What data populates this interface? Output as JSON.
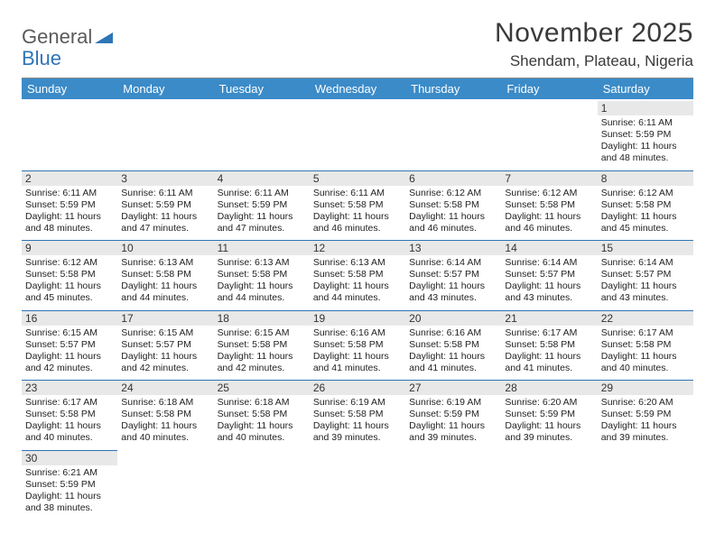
{
  "brand": {
    "general": "General",
    "blue": "Blue",
    "triangle_color": "#2f74b5"
  },
  "title": "November 2025",
  "location": "Shendam, Plateau, Nigeria",
  "colors": {
    "header_bg": "#3b8bc8",
    "header_fg": "#ffffff",
    "daynum_bg": "#e8e8e8",
    "row_divider": "#2f74b5",
    "text": "#222222"
  },
  "weekdays": [
    "Sunday",
    "Monday",
    "Tuesday",
    "Wednesday",
    "Thursday",
    "Friday",
    "Saturday"
  ],
  "weeks": [
    [
      {
        "n": "",
        "sr": "",
        "ss": "",
        "dl": ""
      },
      {
        "n": "",
        "sr": "",
        "ss": "",
        "dl": ""
      },
      {
        "n": "",
        "sr": "",
        "ss": "",
        "dl": ""
      },
      {
        "n": "",
        "sr": "",
        "ss": "",
        "dl": ""
      },
      {
        "n": "",
        "sr": "",
        "ss": "",
        "dl": ""
      },
      {
        "n": "",
        "sr": "",
        "ss": "",
        "dl": ""
      },
      {
        "n": "1",
        "sr": "Sunrise: 6:11 AM",
        "ss": "Sunset: 5:59 PM",
        "dl": "Daylight: 11 hours and 48 minutes."
      }
    ],
    [
      {
        "n": "2",
        "sr": "Sunrise: 6:11 AM",
        "ss": "Sunset: 5:59 PM",
        "dl": "Daylight: 11 hours and 48 minutes."
      },
      {
        "n": "3",
        "sr": "Sunrise: 6:11 AM",
        "ss": "Sunset: 5:59 PM",
        "dl": "Daylight: 11 hours and 47 minutes."
      },
      {
        "n": "4",
        "sr": "Sunrise: 6:11 AM",
        "ss": "Sunset: 5:59 PM",
        "dl": "Daylight: 11 hours and 47 minutes."
      },
      {
        "n": "5",
        "sr": "Sunrise: 6:11 AM",
        "ss": "Sunset: 5:58 PM",
        "dl": "Daylight: 11 hours and 46 minutes."
      },
      {
        "n": "6",
        "sr": "Sunrise: 6:12 AM",
        "ss": "Sunset: 5:58 PM",
        "dl": "Daylight: 11 hours and 46 minutes."
      },
      {
        "n": "7",
        "sr": "Sunrise: 6:12 AM",
        "ss": "Sunset: 5:58 PM",
        "dl": "Daylight: 11 hours and 46 minutes."
      },
      {
        "n": "8",
        "sr": "Sunrise: 6:12 AM",
        "ss": "Sunset: 5:58 PM",
        "dl": "Daylight: 11 hours and 45 minutes."
      }
    ],
    [
      {
        "n": "9",
        "sr": "Sunrise: 6:12 AM",
        "ss": "Sunset: 5:58 PM",
        "dl": "Daylight: 11 hours and 45 minutes."
      },
      {
        "n": "10",
        "sr": "Sunrise: 6:13 AM",
        "ss": "Sunset: 5:58 PM",
        "dl": "Daylight: 11 hours and 44 minutes."
      },
      {
        "n": "11",
        "sr": "Sunrise: 6:13 AM",
        "ss": "Sunset: 5:58 PM",
        "dl": "Daylight: 11 hours and 44 minutes."
      },
      {
        "n": "12",
        "sr": "Sunrise: 6:13 AM",
        "ss": "Sunset: 5:58 PM",
        "dl": "Daylight: 11 hours and 44 minutes."
      },
      {
        "n": "13",
        "sr": "Sunrise: 6:14 AM",
        "ss": "Sunset: 5:57 PM",
        "dl": "Daylight: 11 hours and 43 minutes."
      },
      {
        "n": "14",
        "sr": "Sunrise: 6:14 AM",
        "ss": "Sunset: 5:57 PM",
        "dl": "Daylight: 11 hours and 43 minutes."
      },
      {
        "n": "15",
        "sr": "Sunrise: 6:14 AM",
        "ss": "Sunset: 5:57 PM",
        "dl": "Daylight: 11 hours and 43 minutes."
      }
    ],
    [
      {
        "n": "16",
        "sr": "Sunrise: 6:15 AM",
        "ss": "Sunset: 5:57 PM",
        "dl": "Daylight: 11 hours and 42 minutes."
      },
      {
        "n": "17",
        "sr": "Sunrise: 6:15 AM",
        "ss": "Sunset: 5:57 PM",
        "dl": "Daylight: 11 hours and 42 minutes."
      },
      {
        "n": "18",
        "sr": "Sunrise: 6:15 AM",
        "ss": "Sunset: 5:58 PM",
        "dl": "Daylight: 11 hours and 42 minutes."
      },
      {
        "n": "19",
        "sr": "Sunrise: 6:16 AM",
        "ss": "Sunset: 5:58 PM",
        "dl": "Daylight: 11 hours and 41 minutes."
      },
      {
        "n": "20",
        "sr": "Sunrise: 6:16 AM",
        "ss": "Sunset: 5:58 PM",
        "dl": "Daylight: 11 hours and 41 minutes."
      },
      {
        "n": "21",
        "sr": "Sunrise: 6:17 AM",
        "ss": "Sunset: 5:58 PM",
        "dl": "Daylight: 11 hours and 41 minutes."
      },
      {
        "n": "22",
        "sr": "Sunrise: 6:17 AM",
        "ss": "Sunset: 5:58 PM",
        "dl": "Daylight: 11 hours and 40 minutes."
      }
    ],
    [
      {
        "n": "23",
        "sr": "Sunrise: 6:17 AM",
        "ss": "Sunset: 5:58 PM",
        "dl": "Daylight: 11 hours and 40 minutes."
      },
      {
        "n": "24",
        "sr": "Sunrise: 6:18 AM",
        "ss": "Sunset: 5:58 PM",
        "dl": "Daylight: 11 hours and 40 minutes."
      },
      {
        "n": "25",
        "sr": "Sunrise: 6:18 AM",
        "ss": "Sunset: 5:58 PM",
        "dl": "Daylight: 11 hours and 40 minutes."
      },
      {
        "n": "26",
        "sr": "Sunrise: 6:19 AM",
        "ss": "Sunset: 5:58 PM",
        "dl": "Daylight: 11 hours and 39 minutes."
      },
      {
        "n": "27",
        "sr": "Sunrise: 6:19 AM",
        "ss": "Sunset: 5:59 PM",
        "dl": "Daylight: 11 hours and 39 minutes."
      },
      {
        "n": "28",
        "sr": "Sunrise: 6:20 AM",
        "ss": "Sunset: 5:59 PM",
        "dl": "Daylight: 11 hours and 39 minutes."
      },
      {
        "n": "29",
        "sr": "Sunrise: 6:20 AM",
        "ss": "Sunset: 5:59 PM",
        "dl": "Daylight: 11 hours and 39 minutes."
      }
    ],
    [
      {
        "n": "30",
        "sr": "Sunrise: 6:21 AM",
        "ss": "Sunset: 5:59 PM",
        "dl": "Daylight: 11 hours and 38 minutes."
      },
      {
        "n": "",
        "sr": "",
        "ss": "",
        "dl": ""
      },
      {
        "n": "",
        "sr": "",
        "ss": "",
        "dl": ""
      },
      {
        "n": "",
        "sr": "",
        "ss": "",
        "dl": ""
      },
      {
        "n": "",
        "sr": "",
        "ss": "",
        "dl": ""
      },
      {
        "n": "",
        "sr": "",
        "ss": "",
        "dl": ""
      },
      {
        "n": "",
        "sr": "",
        "ss": "",
        "dl": ""
      }
    ]
  ]
}
